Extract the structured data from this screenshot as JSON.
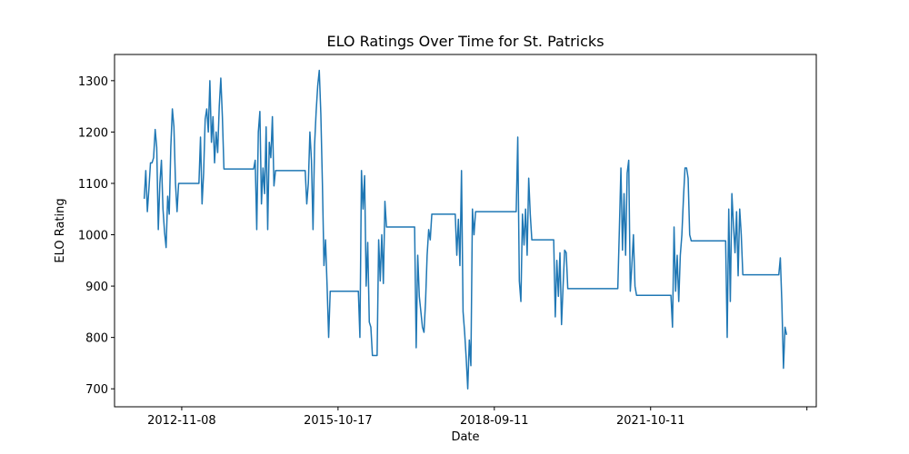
{
  "chart_data": {
    "type": "line",
    "title": "ELO Ratings Over Time for St. Patricks",
    "xlabel": "Date",
    "ylabel": "ELO Rating",
    "x": [
      0,
      1,
      2,
      3,
      4,
      5,
      6,
      7,
      8,
      9,
      10,
      11,
      12,
      13,
      14,
      15,
      16,
      17,
      18,
      19,
      20,
      21,
      22,
      35,
      36,
      37,
      38,
      39,
      40,
      41,
      42,
      43,
      44,
      45,
      46,
      47,
      48,
      49,
      50,
      51,
      70,
      71,
      72,
      73,
      74,
      75,
      76,
      77,
      78,
      79,
      80,
      81,
      82,
      83,
      84,
      103,
      104,
      105,
      106,
      107,
      108,
      109,
      110,
      111,
      112,
      113,
      114,
      115,
      116,
      117,
      118,
      119,
      137,
      138,
      139,
      140,
      141,
      142,
      143,
      144,
      145,
      146,
      149,
      150,
      151,
      152,
      153,
      154,
      155,
      173,
      174,
      175,
      176,
      177,
      178,
      179,
      180,
      181,
      182,
      183,
      184,
      199,
      200,
      201,
      202,
      203,
      204,
      205,
      206,
      207,
      208,
      209,
      210,
      211,
      212,
      238,
      239,
      240,
      241,
      242,
      243,
      244,
      245,
      246,
      247,
      248,
      262,
      263,
      264,
      265,
      266,
      267,
      268,
      269,
      270,
      271,
      303,
      304,
      305,
      306,
      307,
      308,
      309,
      310,
      311,
      312,
      313,
      314,
      315,
      337,
      338,
      339,
      340,
      341,
      342,
      343,
      344,
      345,
      346,
      347,
      348,
      349,
      350,
      372,
      373,
      374,
      375,
      376,
      377,
      378,
      379,
      380,
      381,
      382,
      383,
      406,
      407,
      408,
      409,
      410,
      411
    ],
    "series": [
      {
        "name": "St. Patricks",
        "color": "#1f77b4",
        "values": [
          1070,
          1125,
          1045,
          1090,
          1140,
          1140,
          1150,
          1205,
          1170,
          1010,
          1100,
          1145,
          1050,
          1005,
          975,
          1075,
          1040,
          1170,
          1245,
          1210,
          1100,
          1045,
          1100,
          1100,
          1190,
          1060,
          1120,
          1225,
          1245,
          1200,
          1300,
          1180,
          1230,
          1140,
          1200,
          1160,
          1250,
          1305,
          1230,
          1128,
          1128,
          1145,
          1010,
          1200,
          1240,
          1060,
          1130,
          1080,
          1210,
          1010,
          1180,
          1150,
          1230,
          1095,
          1125,
          1125,
          1060,
          1100,
          1200,
          1145,
          1010,
          1175,
          1240,
          1290,
          1320,
          1235,
          1100,
          940,
          990,
          900,
          800,
          890,
          890,
          800,
          1125,
          1050,
          1115,
          900,
          985,
          830,
          820,
          765,
          765,
          990,
          910,
          1000,
          905,
          1065,
          1015,
          1015,
          780,
          960,
          880,
          850,
          820,
          810,
          870,
          960,
          1010,
          990,
          1040,
          1040,
          960,
          1030,
          940,
          1125,
          850,
          810,
          760,
          700,
          795,
          745,
          1050,
          1000,
          1045,
          1045,
          1190,
          910,
          870,
          1040,
          980,
          1050,
          960,
          1110,
          1040,
          990,
          990,
          840,
          950,
          880,
          965,
          825,
          900,
          970,
          965,
          895,
          895,
          1010,
          1130,
          970,
          1080,
          960,
          1120,
          1145,
          890,
          940,
          1000,
          900,
          882,
          882,
          820,
          1015,
          890,
          960,
          870,
          960,
          1000,
          1070,
          1130,
          1130,
          1110,
          1000,
          988,
          988,
          800,
          1050,
          870,
          1080,
          1020,
          965,
          1045,
          920,
          1050,
          1000,
          922,
          922,
          955,
          865,
          740,
          820,
          805
        ]
      }
    ],
    "xlim": [
      -19,
      430
    ],
    "xticks": [
      {
        "value": 24,
        "label": "2012-11-08"
      },
      {
        "value": 124,
        "label": "2015-10-17"
      },
      {
        "value": 224,
        "label": "2018-09-11"
      },
      {
        "value": 324,
        "label": "2021-10-11"
      },
      {
        "value": 424,
        "label": null
      }
    ],
    "ylim": [
      665,
      1351
    ],
    "yticks": [
      700,
      800,
      900,
      1000,
      1100,
      1200,
      1300
    ]
  }
}
